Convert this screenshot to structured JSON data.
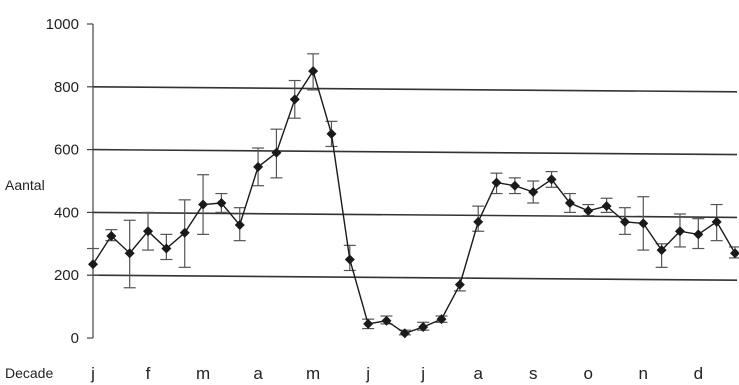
{
  "chart_data": {
    "type": "line",
    "ylabel": "Aantal",
    "xlabel": "Decade",
    "ylim": [
      0,
      1000
    ],
    "yticks": [
      0,
      200,
      400,
      600,
      800,
      1000
    ],
    "month_labels": [
      "j",
      "f",
      "m",
      "a",
      "m",
      "j",
      "j",
      "a",
      "s",
      "o",
      "n",
      "d"
    ],
    "grid": "horizontal",
    "error_bars": true,
    "series": [
      {
        "x": [
          1,
          2,
          3,
          4,
          5,
          6,
          7,
          8,
          9,
          10,
          11,
          12,
          13,
          14,
          15,
          16,
          17,
          18,
          19,
          20,
          21,
          22,
          23,
          24,
          25,
          26,
          27,
          28,
          29,
          30,
          31,
          32,
          33,
          34,
          35,
          36
        ],
        "values": [
          235,
          325,
          270,
          340,
          285,
          335,
          425,
          430,
          360,
          545,
          590,
          760,
          850,
          650,
          250,
          45,
          55,
          15,
          35,
          60,
          170,
          370,
          495,
          485,
          465,
          505,
          430,
          405,
          420,
          370,
          365,
          280,
          340,
          330,
          370,
          270
        ],
        "error_low": [
          200,
          310,
          160,
          280,
          250,
          225,
          330,
          400,
          310,
          485,
          510,
          700,
          790,
          610,
          215,
          30,
          45,
          10,
          25,
          50,
          150,
          340,
          460,
          460,
          430,
          480,
          400,
          390,
          400,
          330,
          280,
          225,
          290,
          285,
          310,
          255
        ],
        "error_high": [
          285,
          345,
          375,
          400,
          330,
          440,
          520,
          460,
          415,
          605,
          665,
          820,
          905,
          690,
          295,
          60,
          70,
          25,
          50,
          70,
          190,
          420,
          525,
          510,
          500,
          530,
          460,
          425,
          445,
          415,
          450,
          300,
          395,
          380,
          425,
          290
        ]
      }
    ],
    "colors": {
      "line": "#1a1a1a",
      "marker": "#1a1a1a",
      "error_bar": "#555555",
      "grid": "#333333"
    }
  }
}
